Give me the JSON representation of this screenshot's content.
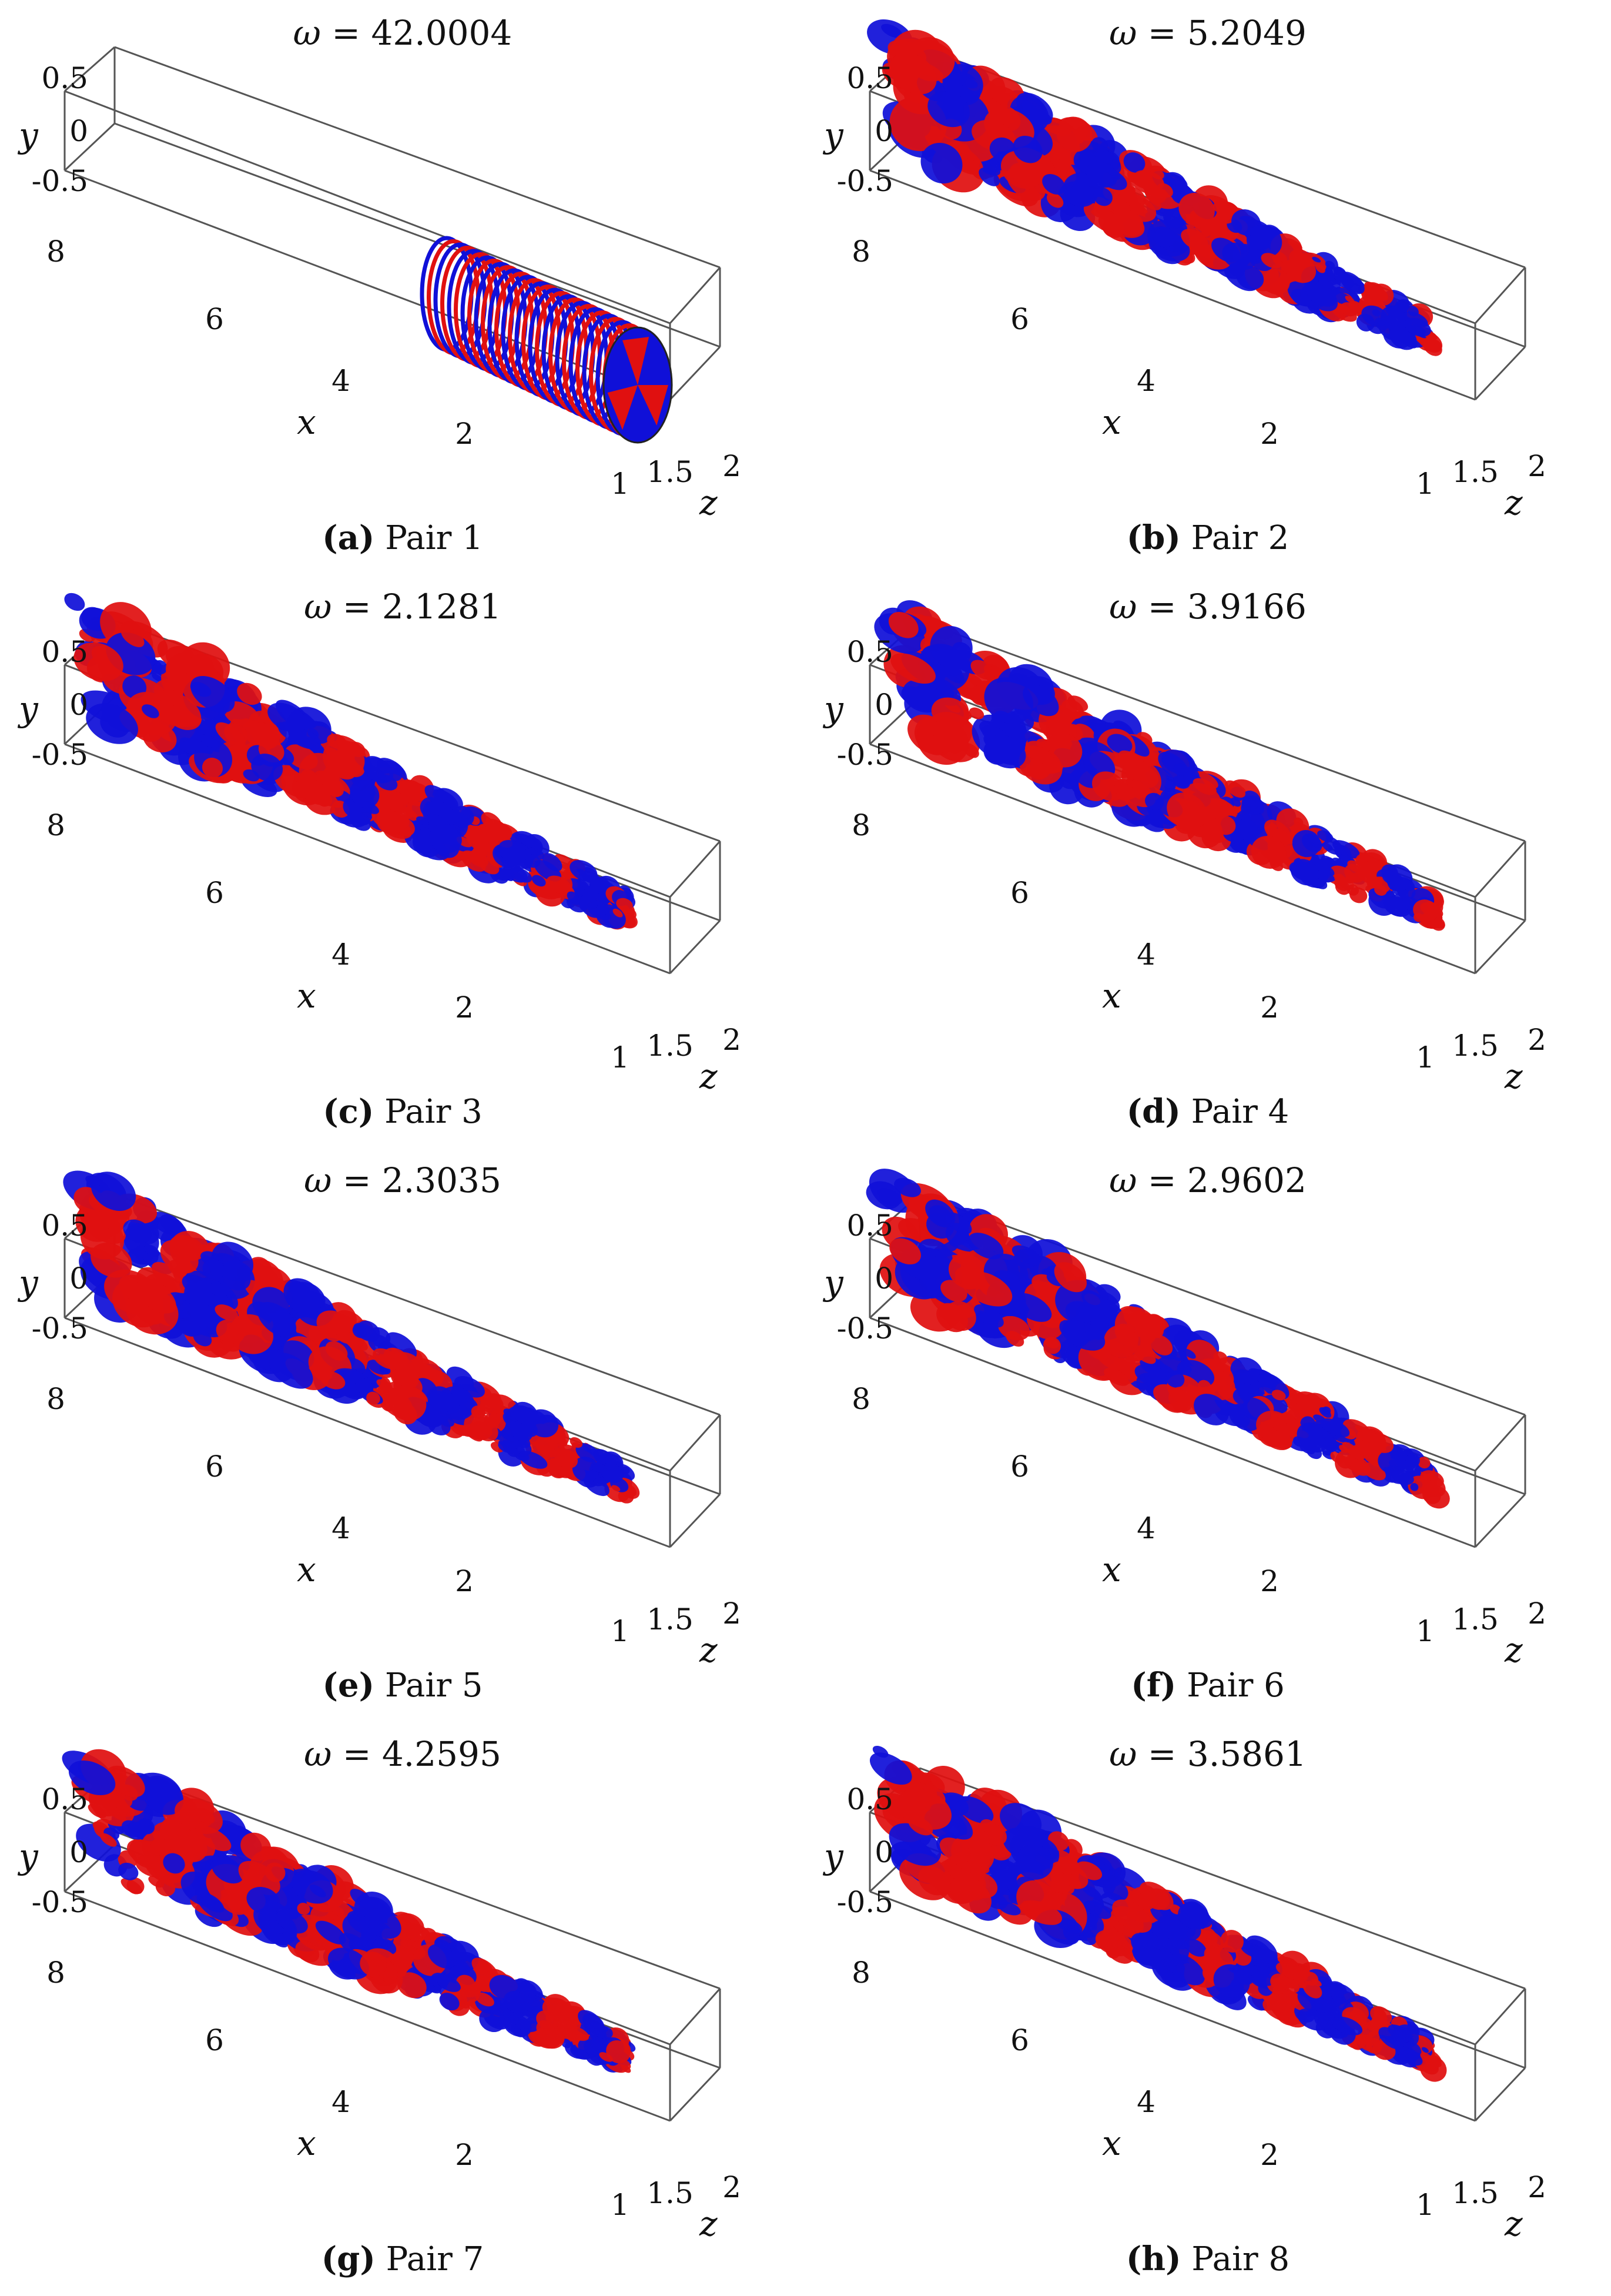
{
  "figure": {
    "panels": [
      {
        "title_prefix": "ω",
        "title_eq": " = ",
        "omega": "42.0004",
        "caption_letter": "(a)",
        "caption_text": " Pair 1",
        "variant": "rings"
      },
      {
        "title_prefix": "ω",
        "title_eq": " = ",
        "omega": "5.2049",
        "caption_letter": "(b)",
        "caption_text": " Pair 2",
        "variant": "blobs"
      },
      {
        "title_prefix": "ω",
        "title_eq": " = ",
        "omega": "2.1281",
        "caption_letter": "(c)",
        "caption_text": " Pair 3",
        "variant": "blobs"
      },
      {
        "title_prefix": "ω",
        "title_eq": " = ",
        "omega": "3.9166",
        "caption_letter": "(d)",
        "caption_text": " Pair 4",
        "variant": "blobs"
      },
      {
        "title_prefix": "ω",
        "title_eq": " = ",
        "omega": "2.3035",
        "caption_letter": "(e)",
        "caption_text": " Pair 5",
        "variant": "blobs"
      },
      {
        "title_prefix": "ω",
        "title_eq": " = ",
        "omega": "2.9602",
        "caption_letter": "(f)",
        "caption_text": " Pair 6",
        "variant": "blobs"
      },
      {
        "title_prefix": "ω",
        "title_eq": " = ",
        "omega": "4.2595",
        "caption_letter": "(g)",
        "caption_text": " Pair 7",
        "variant": "blobs"
      },
      {
        "title_prefix": "ω",
        "title_eq": " = ",
        "omega": "3.5861",
        "caption_letter": "(h)",
        "caption_text": " Pair 8",
        "variant": "blobs"
      }
    ],
    "axes": {
      "y_label": "y",
      "x_label": "x",
      "z_label": "z",
      "y_ticks": [
        "0.5",
        "0",
        "-0.5"
      ],
      "x_ticks": [
        "8",
        "6",
        "4",
        "2"
      ],
      "z_ticks": [
        "1",
        "1.5",
        "2"
      ]
    },
    "colors": {
      "positive": "#e01010",
      "negative": "#1010d8",
      "box": "#555555"
    }
  }
}
